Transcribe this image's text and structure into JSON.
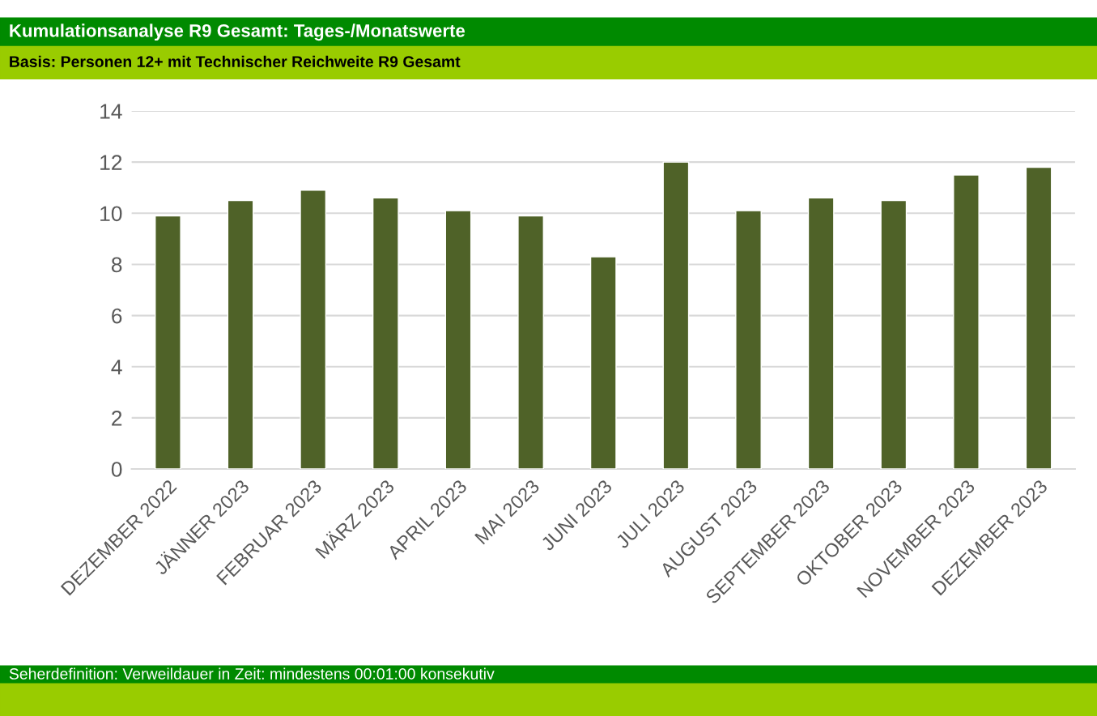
{
  "chart_data": {
    "type": "bar",
    "title": "Kumulationsanalyse R9 Gesamt: Tages-/Monatswerte",
    "subtitle": "Basis: Personen 12+ mit Technischer Reichweite R9 Gesamt",
    "categories": [
      "DEZEMBER 2022",
      "JÄNNER 2023",
      "FEBRUAR 2023",
      "MÄRZ 2023",
      "APRIL 2023",
      "MAI 2023",
      "JUNI 2023",
      "JULI 2023",
      "AUGUST 2023",
      "SEPTEMBER 2023",
      "OKTOBER 2023",
      "NOVEMBER 2023",
      "DEZEMBER 2023"
    ],
    "values": [
      9.9,
      10.5,
      10.9,
      10.6,
      10.1,
      9.9,
      8.3,
      12.0,
      10.1,
      10.6,
      10.5,
      11.5,
      11.8
    ],
    "color": "#4f6228",
    "ylim": [
      0,
      14
    ],
    "yticks": [
      0,
      2,
      4,
      6,
      8,
      10,
      12,
      14
    ],
    "grid": "y",
    "annotations": [
      "Seherdefinition: Verweildauer in Zeit: mindestens 00:01:00 konsekutiv"
    ]
  }
}
